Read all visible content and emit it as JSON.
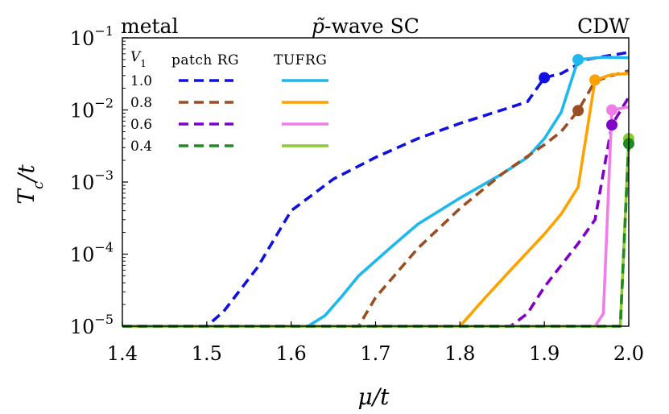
{
  "chart_data": {
    "type": "line",
    "yscale": "log",
    "xlabel": "μ/t",
    "ylabel": "T_c/t",
    "xlim": [
      1.4,
      2.0
    ],
    "ylim": [
      1e-05,
      0.1
    ],
    "x_ticks": [
      "1.4",
      "1.5",
      "1.6",
      "1.7",
      "1.8",
      "1.9",
      "2.0"
    ],
    "y_ticks": [
      {
        "base": "10",
        "exp": "−5"
      },
      {
        "base": "10",
        "exp": "−4"
      },
      {
        "base": "10",
        "exp": "−3"
      },
      {
        "base": "10",
        "exp": "−2"
      },
      {
        "base": "10",
        "exp": "−1"
      }
    ],
    "regions": {
      "left": "metal",
      "center": "p̃-wave SC",
      "right": "CDW"
    },
    "legend": {
      "v1_header": "V1",
      "patch_header": "patch RG",
      "tufrg_header": "TUFRG",
      "rows": [
        "1.0",
        "0.8",
        "0.6",
        "0.4"
      ]
    },
    "series": [
      {
        "name": "patch RG V1=1.0",
        "method": "patch RG",
        "color": "#1010e0",
        "dashed": true,
        "x": [
          1.4,
          1.5,
          1.52,
          1.56,
          1.6,
          1.65,
          1.7,
          1.75,
          1.8,
          1.85,
          1.88,
          1.9,
          1.92,
          1.95,
          1.97,
          2.0
        ],
        "y": [
          1e-05,
          1e-05,
          1.6e-05,
          6.5e-05,
          0.0004,
          0.0011,
          0.0022,
          0.004,
          0.0065,
          0.01,
          0.013,
          0.028,
          0.032,
          0.05,
          0.055,
          0.063
        ],
        "marker": {
          "x": 1.9,
          "y": 0.028
        }
      },
      {
        "name": "TUFRG V1=1.0",
        "method": "TUFRG",
        "color": "#1cb8ee",
        "dashed": false,
        "x": [
          1.4,
          1.62,
          1.64,
          1.66,
          1.68,
          1.72,
          1.75,
          1.8,
          1.85,
          1.88,
          1.9,
          1.92,
          1.94,
          1.97,
          2.0
        ],
        "y": [
          1e-05,
          1e-05,
          1.4e-05,
          2.6e-05,
          5e-05,
          0.00013,
          0.00026,
          0.0006,
          0.0013,
          0.0022,
          0.004,
          0.0093,
          0.05,
          0.054,
          0.053
        ],
        "marker": {
          "x": 1.94,
          "y": 0.05
        }
      },
      {
        "name": "patch RG V1=0.8",
        "method": "patch RG",
        "color": "#9a4e22",
        "dashed": true,
        "x": [
          1.4,
          1.68,
          1.7,
          1.75,
          1.8,
          1.85,
          1.9,
          1.92,
          1.94,
          1.96,
          1.98,
          2.0
        ],
        "y": [
          1e-05,
          1e-05,
          2.5e-05,
          0.00012,
          0.00043,
          0.0013,
          0.0033,
          0.005,
          0.0098,
          0.025,
          0.03,
          0.035
        ],
        "marker": {
          "x": 1.94,
          "y": 0.0098
        }
      },
      {
        "name": "TUFRG V1=0.8",
        "method": "TUFRG",
        "color": "#ffa200",
        "dashed": false,
        "x": [
          1.4,
          1.8,
          1.83,
          1.86,
          1.9,
          1.92,
          1.94,
          1.96,
          1.98,
          2.0
        ],
        "y": [
          1e-05,
          1e-05,
          2.5e-05,
          6e-05,
          0.00019,
          0.00036,
          0.00085,
          0.026,
          0.031,
          0.032
        ],
        "marker": {
          "x": 1.96,
          "y": 0.026
        }
      },
      {
        "name": "patch RG V1=0.6",
        "method": "patch RG",
        "color": "#8000c8",
        "dashed": true,
        "x": [
          1.4,
          1.86,
          1.88,
          1.9,
          1.92,
          1.94,
          1.96,
          1.98,
          2.0
        ],
        "y": [
          1e-05,
          1e-05,
          1.5e-05,
          3.5e-05,
          7e-05,
          0.00014,
          0.0003,
          0.0062,
          0.015
        ],
        "marker": {
          "x": 1.98,
          "y": 0.0062
        }
      },
      {
        "name": "TUFRG V1=0.6",
        "method": "TUFRG",
        "color": "#f07de8",
        "dashed": false,
        "x": [
          1.4,
          1.96,
          1.97,
          1.98,
          2.0
        ],
        "y": [
          1e-05,
          1e-05,
          1.5e-05,
          0.01,
          0.011
        ],
        "marker": {
          "x": 1.98,
          "y": 0.01
        }
      },
      {
        "name": "TUFRG V1=0.4",
        "method": "TUFRG",
        "color": "#8ccc30",
        "dashed": false,
        "x": [
          1.4,
          1.99,
          2.0
        ],
        "y": [
          1e-05,
          1e-05,
          0.004
        ],
        "marker": {
          "x": 2.0,
          "y": 0.004
        }
      },
      {
        "name": "patch RG V1=0.4",
        "method": "patch RG",
        "color": "#1f8a1f",
        "dashed": true,
        "x": [
          1.4,
          1.99,
          2.0
        ],
        "y": [
          1e-05,
          1e-05,
          0.0034
        ],
        "marker": {
          "x": 2.0,
          "y": 0.0034
        }
      }
    ]
  }
}
